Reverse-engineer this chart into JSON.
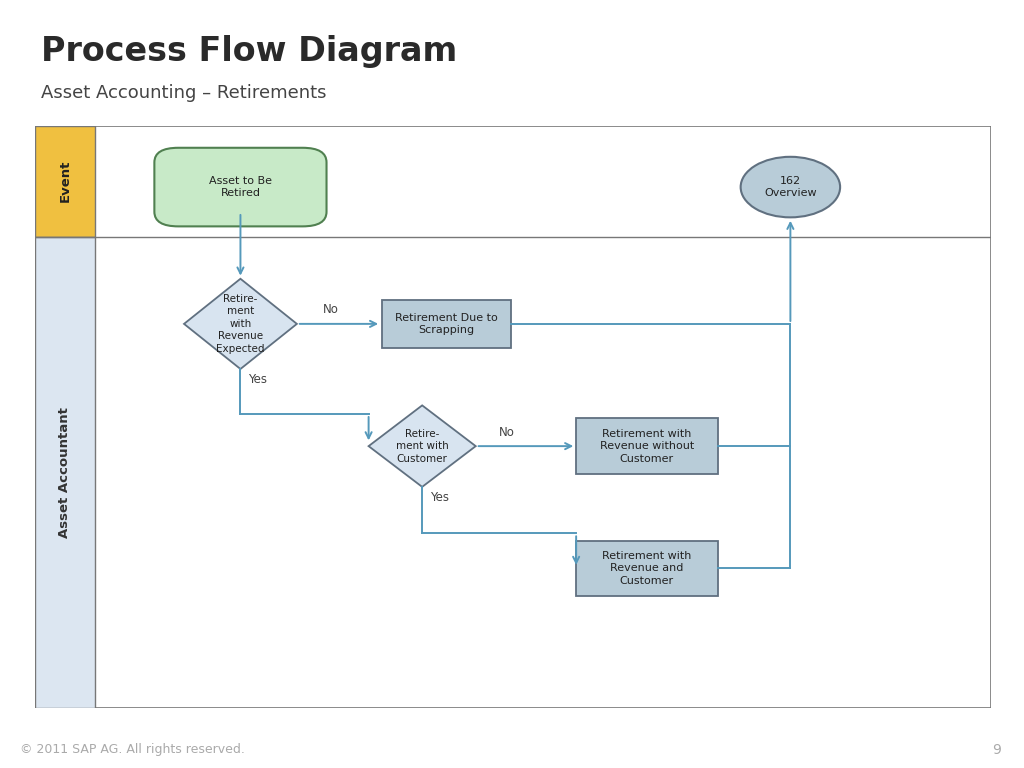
{
  "title": "Process Flow Diagram",
  "subtitle": "Asset Accounting – Retirements",
  "title_fontsize": 24,
  "subtitle_fontsize": 13,
  "footer": "© 2011 SAP AG. All rights reserved.",
  "page_num": "9",
  "bg_color": "#ffffff",
  "header_bar_color": "#E8A000",
  "footer_bg": "#222222",
  "footer_text_color": "#aaaaaa",
  "event_lane_color": "#F0C040",
  "accountant_lane_color": "#dce6f1",
  "arrow_color": "#5599bb",
  "border_color": "#888888",
  "shape_edge_color": "#607080",
  "diamond_fill": "#d8e4f0",
  "rect_fill": "#b8ccd8",
  "oval_fill": "#c8eac8",
  "oval_edge": "#508050",
  "circle_fill": "#b8ccd8",
  "circle_edge": "#607080",
  "text_color": "#222222",
  "label_color": "#444444"
}
